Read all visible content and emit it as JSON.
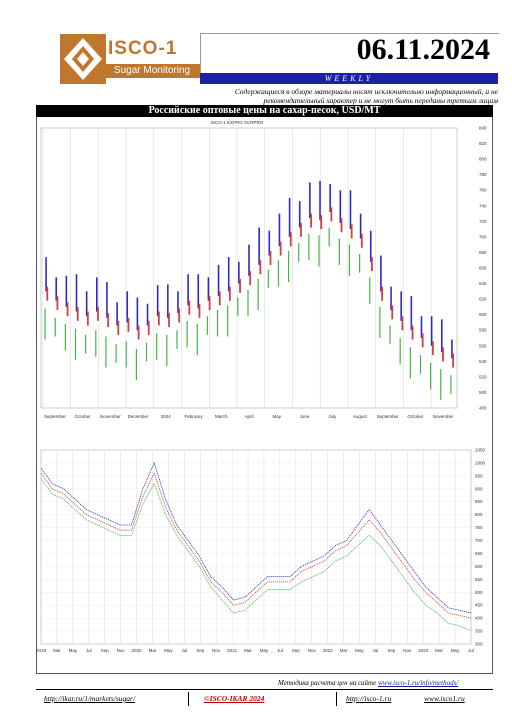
{
  "header": {
    "brand_name": "ISCO-1",
    "brand_sub": "Sugar Monitoring",
    "date": "06.11.2024",
    "weekly": "WEEKLY",
    "disclaimer": "Содержащиеся в обзоре материалы носят исключительно информационный, а не рекомендательный характер и не могут быть переданы третьим лицам"
  },
  "chart_title": "Российские оптовые цены на сахар-песок, USD/MT",
  "chart_data": [
    {
      "type": "bar",
      "subtitle": "ISCO-1 EXPRO SCRPRO",
      "x_labels": [
        "September",
        "October",
        "November",
        "December",
        "2024",
        "February",
        "March",
        "April",
        "May",
        "June",
        "July",
        "August",
        "September",
        "October",
        "November"
      ],
      "y_ticks": [
        "840",
        "820",
        "800",
        "780",
        "760",
        "740",
        "720",
        "700",
        "680",
        "660",
        "640",
        "620",
        "600",
        "580",
        "560",
        "540",
        "520",
        "500",
        "480"
      ],
      "ylim": [
        480,
        840
      ],
      "series_colors": {
        "high": "#2a2ac8",
        "mid": "#d04040",
        "low": "#46b446"
      },
      "series": [
        {
          "name": "high",
          "values": [
            650,
            640,
            632,
            628,
            622,
            630,
            618,
            608,
            612,
            598,
            606,
            620,
            615,
            622,
            634,
            628,
            640,
            646,
            650,
            660,
            672,
            688,
            700,
            712,
            726,
            738,
            752,
            748,
            760,
            742,
            736,
            722,
            690,
            652,
            628,
            612,
            600,
            590,
            580,
            570,
            560
          ]
        },
        {
          "name": "mid",
          "values": [
            630,
            618,
            610,
            604,
            598,
            604,
            596,
            586,
            590,
            580,
            586,
            598,
            596,
            602,
            612,
            608,
            618,
            624,
            630,
            640,
            650,
            664,
            676,
            688,
            700,
            712,
            724,
            722,
            732,
            718,
            710,
            698,
            668,
            630,
            606,
            592,
            580,
            570,
            560,
            552,
            544
          ]
        },
        {
          "name": "low",
          "values": [
            600,
            588,
            580,
            574,
            566,
            572,
            564,
            554,
            558,
            548,
            556,
            568,
            566,
            572,
            584,
            580,
            590,
            598,
            604,
            614,
            624,
            638,
            650,
            662,
            674,
            684,
            696,
            694,
            704,
            690,
            682,
            670,
            640,
            602,
            578,
            562,
            550,
            540,
            530,
            522,
            514
          ]
        }
      ]
    },
    {
      "type": "line",
      "x_labels": [
        "2019",
        "Mar",
        "May",
        "Jul",
        "Sep",
        "Nov",
        "2020",
        "Mar",
        "May",
        "Jul",
        "Sep",
        "Nov",
        "2021",
        "Mar",
        "May",
        "Jul",
        "Sep",
        "Nov",
        "2022",
        "Mar",
        "May",
        "Jul",
        "Sep",
        "Nov",
        "2023",
        "Mar",
        "May",
        "Jul"
      ],
      "y_ticks": [
        "1050",
        "1000",
        "950",
        "900",
        "850",
        "800",
        "750",
        "700",
        "650",
        "600",
        "550",
        "500",
        "450",
        "400",
        "350",
        "300"
      ],
      "ylim": [
        300,
        1050
      ],
      "series_colors": {
        "s1": "#2a2ac8",
        "s2": "#d04040",
        "s3": "#46b446"
      },
      "series": [
        {
          "name": "s1",
          "values": [
            980,
            920,
            900,
            860,
            820,
            800,
            780,
            760,
            760,
            900,
            1000,
            860,
            760,
            700,
            640,
            560,
            520,
            470,
            480,
            520,
            560,
            560,
            560,
            600,
            620,
            640,
            680,
            700,
            760,
            820,
            760,
            700,
            640,
            580,
            520,
            480,
            440,
            430,
            420
          ]
        },
        {
          "name": "s2",
          "values": [
            960,
            900,
            880,
            840,
            800,
            780,
            760,
            740,
            740,
            870,
            960,
            830,
            740,
            680,
            620,
            540,
            500,
            450,
            460,
            500,
            540,
            540,
            540,
            580,
            600,
            620,
            660,
            680,
            730,
            780,
            730,
            670,
            610,
            550,
            500,
            460,
            420,
            410,
            400
          ]
        },
        {
          "name": "s3",
          "values": [
            940,
            880,
            860,
            820,
            780,
            760,
            740,
            720,
            720,
            840,
            920,
            800,
            720,
            660,
            600,
            520,
            470,
            420,
            430,
            470,
            510,
            510,
            510,
            540,
            560,
            580,
            620,
            640,
            680,
            720,
            680,
            620,
            560,
            500,
            450,
            420,
            380,
            370,
            350
          ]
        }
      ]
    }
  ],
  "method_note": "Методика расчета цен на сайте",
  "method_link": "www.isco-1.ru/info/methods/",
  "footer": {
    "link1": "http://ikar.ru/1/markets/sugar/",
    "copy": "©ISCO-IKAR 2024",
    "link2": "http://isco-1.ru",
    "link3": "www.isco1.ru"
  }
}
